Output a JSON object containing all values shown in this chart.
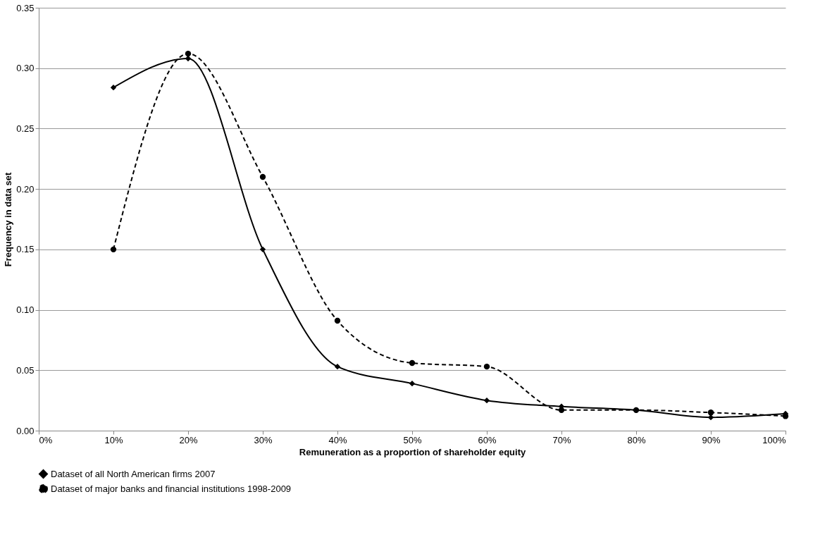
{
  "chart_data": {
    "type": "line",
    "xlabel": "Remuneration as a proportion of shareholder equity",
    "ylabel": "Frequency in data set",
    "x": [
      10,
      20,
      30,
      40,
      50,
      60,
      70,
      80,
      90,
      100
    ],
    "xlim": [
      0,
      100
    ],
    "xticks": [
      {
        "value": 0,
        "label": "0%"
      },
      {
        "value": 10,
        "label": "10%"
      },
      {
        "value": 20,
        "label": "20%"
      },
      {
        "value": 30,
        "label": "30%"
      },
      {
        "value": 40,
        "label": "40%"
      },
      {
        "value": 50,
        "label": "50%"
      },
      {
        "value": 60,
        "label": "60%"
      },
      {
        "value": 70,
        "label": "70%"
      },
      {
        "value": 80,
        "label": "80%"
      },
      {
        "value": 90,
        "label": "90%"
      },
      {
        "value": 100,
        "label": "100%"
      }
    ],
    "ylim": [
      0,
      0.35
    ],
    "yticks": [
      {
        "value": 0,
        "label": "0.00"
      },
      {
        "value": 0.05,
        "label": "0.05"
      },
      {
        "value": 0.1,
        "label": "0.10"
      },
      {
        "value": 0.15,
        "label": "0.15"
      },
      {
        "value": 0.2,
        "label": "0.20"
      },
      {
        "value": 0.25,
        "label": "0.25"
      },
      {
        "value": 0.3,
        "label": "0.30"
      },
      {
        "value": 0.35,
        "label": "0.35"
      }
    ],
    "grid": "y",
    "legend": "bottom",
    "series": [
      {
        "name": "Dataset of all North American firms 2007",
        "color": "#000000",
        "marker": "diamond",
        "line_style": "solid",
        "values": [
          0.284,
          0.308,
          0.15,
          0.053,
          0.039,
          0.025,
          0.02,
          0.017,
          0.011,
          0.014
        ]
      },
      {
        "name": "Dataset of major banks and financial institutions 1998-2009",
        "color": "#000000",
        "marker": "circle",
        "line_style": "dashed",
        "values": [
          0.15,
          0.312,
          0.21,
          0.091,
          0.056,
          0.053,
          0.017,
          0.017,
          0.015,
          0.012
        ]
      }
    ]
  }
}
